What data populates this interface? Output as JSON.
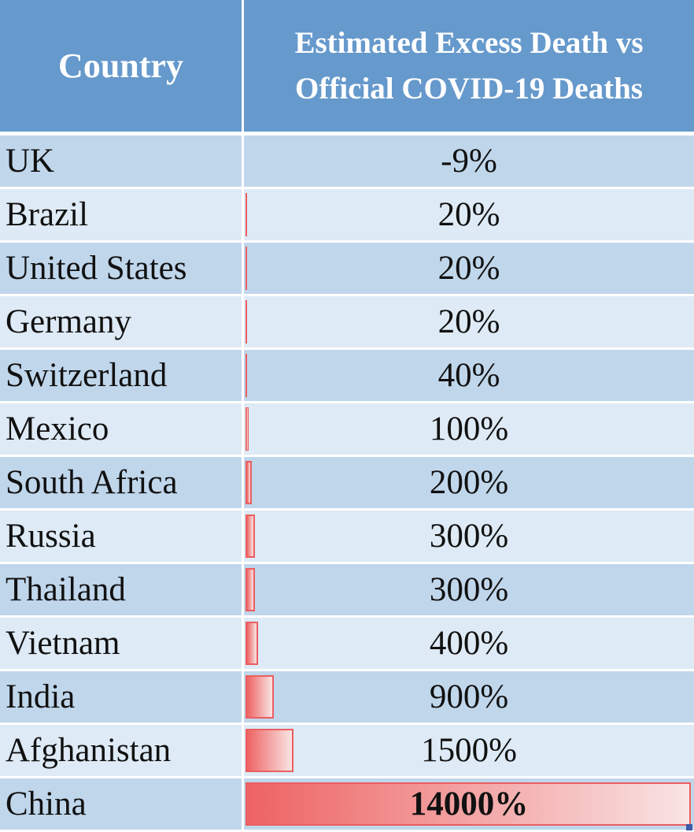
{
  "table": {
    "headers": {
      "country": "Country",
      "metric_line1": "Estimated Excess Death vs",
      "metric_line2": "Official COVID-19 Deaths"
    }
  },
  "colors": {
    "header_bg": "#6699cc",
    "row_dark": "#c0d6eb",
    "row_light": "#deeaf5",
    "databar": "#ee6363"
  },
  "chart_data": {
    "type": "table",
    "columns": [
      "Country",
      "Estimated Excess Death vs Official COVID-19 Deaths"
    ],
    "databar_max": 14000,
    "rows": [
      {
        "country": "UK",
        "label": "-9%",
        "value": -9
      },
      {
        "country": "Brazil",
        "label": "20%",
        "value": 20
      },
      {
        "country": "United States",
        "label": "20%",
        "value": 20
      },
      {
        "country": "Germany",
        "label": "20%",
        "value": 20
      },
      {
        "country": "Switzerland",
        "label": "40%",
        "value": 40
      },
      {
        "country": "Mexico",
        "label": "100%",
        "value": 100
      },
      {
        "country": "South Africa",
        "label": "200%",
        "value": 200
      },
      {
        "country": "Russia",
        "label": "300%",
        "value": 300
      },
      {
        "country": "Thailand",
        "label": "300%",
        "value": 300
      },
      {
        "country": "Vietnam",
        "label": "400%",
        "value": 400
      },
      {
        "country": "India",
        "label": "900%",
        "value": 900
      },
      {
        "country": "Afghanistan",
        "label": "1500%",
        "value": 1500
      },
      {
        "country": "China",
        "label": "14000%",
        "value": 14000,
        "bold": true
      }
    ]
  }
}
